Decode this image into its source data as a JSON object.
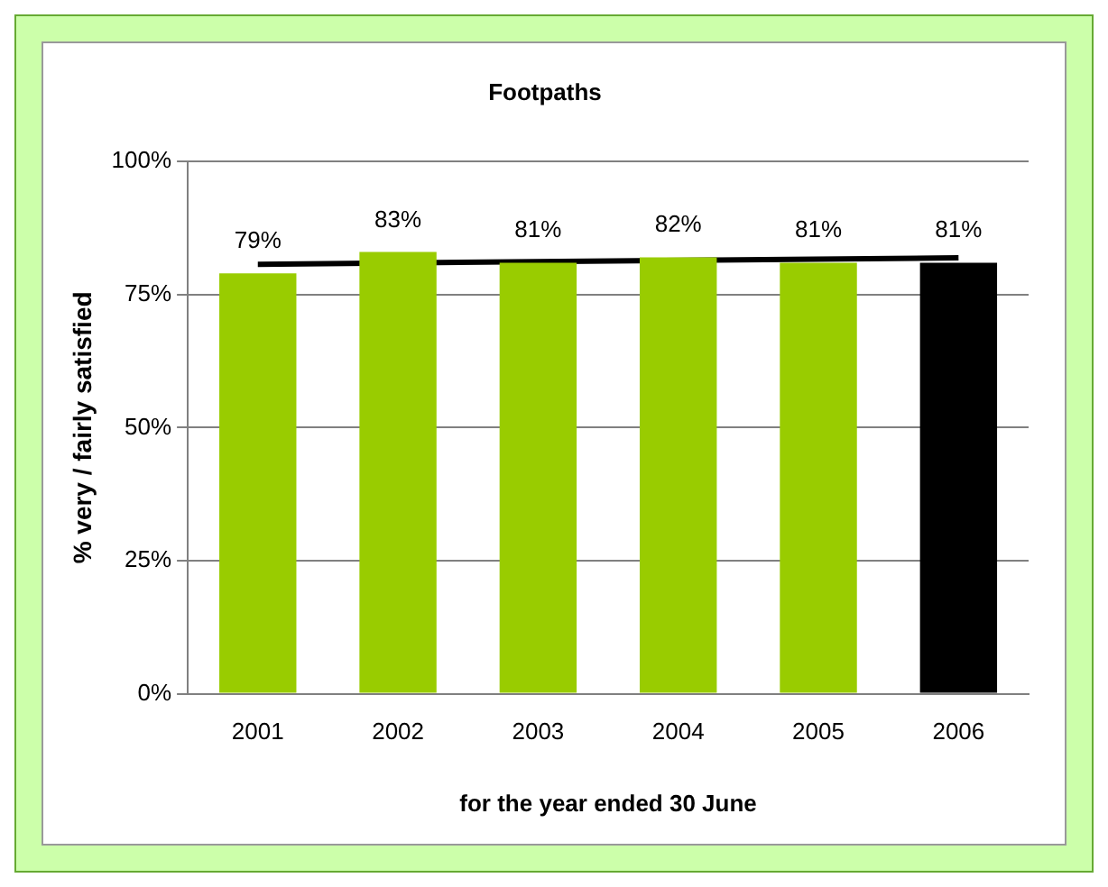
{
  "chart_data": {
    "type": "bar",
    "title": "Footpaths",
    "xlabel": "for the year ended 30 June",
    "ylabel": "% very / fairly satisfied",
    "categories": [
      "2001",
      "2002",
      "2003",
      "2004",
      "2005",
      "2006"
    ],
    "series": [
      {
        "values": [
          79,
          83,
          81,
          82,
          81,
          81
        ],
        "colors": [
          "#99cc00",
          "#99cc00",
          "#99cc00",
          "#99cc00",
          "#99cc00",
          "#000000"
        ],
        "value_labels": [
          "79%",
          "83%",
          "81%",
          "82%",
          "81%",
          "81%"
        ]
      },
      {
        "type": "line",
        "color": "#000000",
        "values": [
          80.7,
          null,
          null,
          null,
          null,
          81.9
        ]
      }
    ],
    "ylim": [
      0,
      100
    ],
    "yticks": [
      {
        "value": 0,
        "label": "0%"
      },
      {
        "value": 25,
        "label": "25%"
      },
      {
        "value": 50,
        "label": "50%"
      },
      {
        "value": 75,
        "label": "75%"
      },
      {
        "value": 100,
        "label": "100%"
      }
    ],
    "grid": "y",
    "legend": false
  }
}
